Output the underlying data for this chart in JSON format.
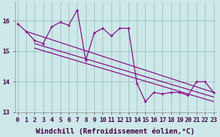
{
  "xlabel": "Windchill (Refroidissement éolien,°C)",
  "background_color": "#cce8e8",
  "line_color": "#880088",
  "grid_color": "#99bbbb",
  "x": [
    0,
    1,
    2,
    3,
    4,
    5,
    6,
    7,
    8,
    9,
    10,
    11,
    12,
    13,
    14,
    15,
    16,
    17,
    18,
    19,
    20,
    21,
    22,
    23
  ],
  "y_main": [
    15.9,
    15.65,
    15.35,
    15.25,
    15.8,
    15.95,
    15.85,
    16.35,
    14.7,
    15.6,
    15.75,
    15.5,
    15.75,
    15.75,
    13.95,
    13.35,
    13.65,
    13.6,
    13.65,
    13.65,
    13.55,
    14.0,
    14.0,
    13.65
  ],
  "reg_lines": [
    {
      "x0": 1,
      "y0": 15.65,
      "x1": 23,
      "y1": 13.65
    },
    {
      "x0": 2,
      "y0": 15.25,
      "x1": 23,
      "y1": 13.5
    },
    {
      "x0": 2,
      "y0": 15.1,
      "x1": 23,
      "y1": 13.35
    }
  ],
  "ylim": [
    13.0,
    16.6
  ],
  "xlim": [
    -0.3,
    23.3
  ],
  "yticks": [
    13,
    14,
    15,
    16
  ],
  "xticks": [
    0,
    1,
    2,
    3,
    4,
    5,
    6,
    7,
    8,
    9,
    10,
    11,
    12,
    13,
    14,
    15,
    16,
    17,
    18,
    19,
    20,
    21,
    22,
    23
  ],
  "tick_fontsize": 6.5,
  "xlabel_fontsize": 7.5
}
